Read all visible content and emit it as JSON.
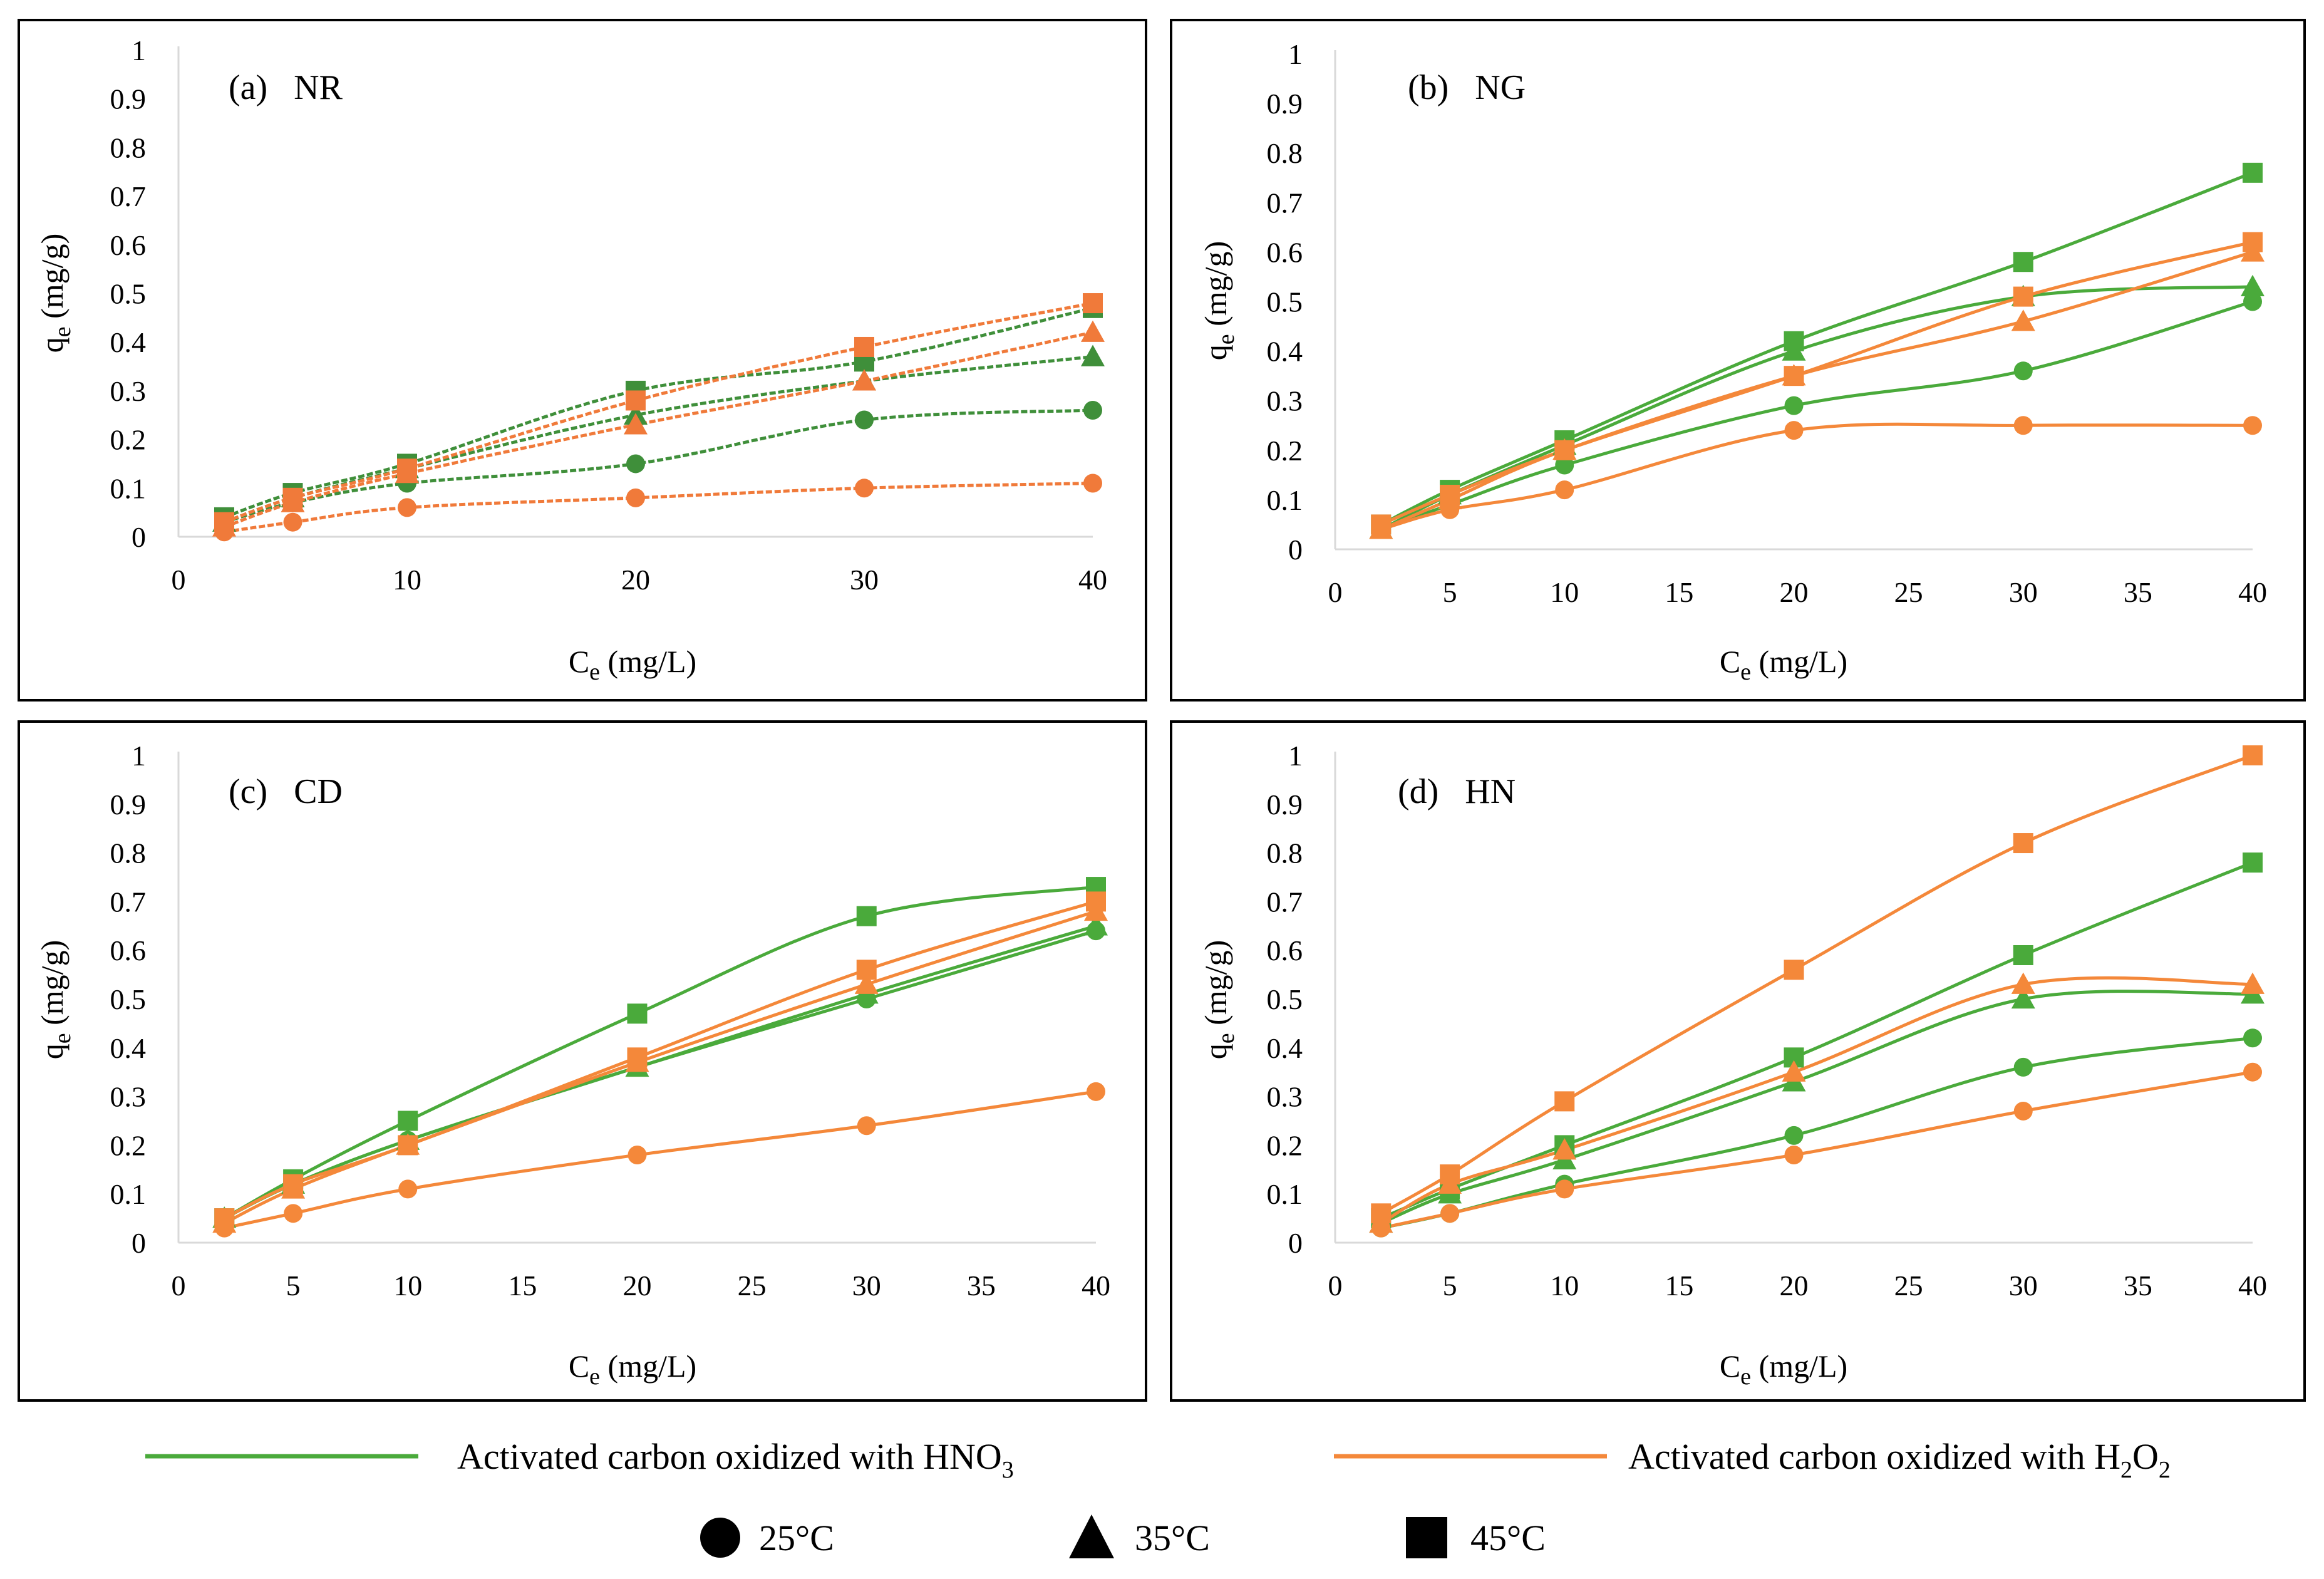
{
  "colors": {
    "hno3": "#4aaa3b",
    "h2o2": "#f4883a",
    "nr_hno3": "#3f8f3a",
    "nr_h2o2": "#f07a3a"
  },
  "legend": {
    "hno3_label_main": "Activated carbon oxidized with HNO",
    "hno3_label_sub": "3",
    "h2o2_label_main": "Activated carbon oxidized with H",
    "h2o2_label_sub1": "2",
    "h2o2_label_mid": "O",
    "h2o2_label_sub2": "2",
    "temps": [
      {
        "shape": "circle",
        "label": "25°C"
      },
      {
        "shape": "triangle",
        "label": "35°C"
      },
      {
        "shape": "square",
        "label": "45°C"
      }
    ]
  },
  "chart_data": [
    {
      "type": "line",
      "title": "(a)   NR",
      "xlabel": "C",
      "xlabel_sub": "e",
      "xlabel_unit": " (mg/L)",
      "ylabel": "q",
      "ylabel_sub": "e",
      "ylabel_unit": " (mg/g)",
      "xlim": [
        0,
        40
      ],
      "ylim": [
        0,
        1
      ],
      "xticks": [
        0,
        10,
        20,
        30,
        40
      ],
      "yticks": [
        0,
        0.1,
        0.2,
        0.3,
        0.4,
        0.5,
        0.6,
        0.7,
        0.8,
        0.9,
        1
      ],
      "x": [
        2,
        5,
        10,
        20,
        30,
        40
      ],
      "series": [
        {
          "name": "HNO3 25°C",
          "color_key": "nr_hno3",
          "marker": "circle",
          "values": [
            0.03,
            0.07,
            0.11,
            0.15,
            0.24,
            0.26
          ]
        },
        {
          "name": "HNO3 35°C",
          "color_key": "nr_hno3",
          "marker": "triangle",
          "values": [
            0.03,
            0.08,
            0.14,
            0.25,
            0.32,
            0.37
          ]
        },
        {
          "name": "HNO3 45°C",
          "color_key": "nr_hno3",
          "marker": "square",
          "values": [
            0.04,
            0.09,
            0.15,
            0.3,
            0.36,
            0.47
          ]
        },
        {
          "name": "H2O2 25°C",
          "color_key": "nr_h2o2",
          "marker": "circle",
          "values": [
            0.01,
            0.03,
            0.06,
            0.08,
            0.1,
            0.11
          ]
        },
        {
          "name": "H2O2 35°C",
          "color_key": "nr_h2o2",
          "marker": "triangle",
          "values": [
            0.02,
            0.07,
            0.13,
            0.23,
            0.32,
            0.42
          ]
        },
        {
          "name": "H2O2 45°C",
          "color_key": "nr_h2o2",
          "marker": "square",
          "values": [
            0.03,
            0.08,
            0.14,
            0.28,
            0.39,
            0.48
          ]
        }
      ]
    },
    {
      "type": "line",
      "title": "(b)   NG",
      "xlabel": "C",
      "xlabel_sub": "e",
      "xlabel_unit": " (mg/L)",
      "ylabel": "q",
      "ylabel_sub": "e",
      "ylabel_unit": " (mg/g)",
      "xlim": [
        0,
        40
      ],
      "ylim": [
        0,
        1
      ],
      "xticks": [
        0,
        5,
        10,
        15,
        20,
        25,
        30,
        35,
        40
      ],
      "yticks": [
        0,
        0.1,
        0.2,
        0.3,
        0.4,
        0.5,
        0.6,
        0.7,
        0.8,
        0.9,
        1
      ],
      "x": [
        2,
        5,
        10,
        20,
        30,
        40
      ],
      "series": [
        {
          "name": "HNO3 25°C",
          "color_key": "hno3",
          "marker": "circle",
          "values": [
            0.04,
            0.09,
            0.17,
            0.29,
            0.36,
            0.5
          ]
        },
        {
          "name": "HNO3 35°C",
          "color_key": "hno3",
          "marker": "triangle",
          "values": [
            0.04,
            0.11,
            0.21,
            0.4,
            0.51,
            0.53
          ]
        },
        {
          "name": "HNO3 45°C",
          "color_key": "hno3",
          "marker": "square",
          "values": [
            0.05,
            0.12,
            0.22,
            0.42,
            0.58,
            0.76
          ]
        },
        {
          "name": "H2O2 25°C",
          "color_key": "h2o2",
          "marker": "circle",
          "values": [
            0.04,
            0.08,
            0.12,
            0.24,
            0.25,
            0.25
          ]
        },
        {
          "name": "H2O2 35°C",
          "color_key": "h2o2",
          "marker": "triangle",
          "values": [
            0.04,
            0.1,
            0.2,
            0.35,
            0.46,
            0.6
          ]
        },
        {
          "name": "H2O2 45°C",
          "color_key": "h2o2",
          "marker": "square",
          "values": [
            0.05,
            0.11,
            0.2,
            0.35,
            0.51,
            0.62
          ]
        }
      ]
    },
    {
      "type": "line",
      "title": "(c)   CD",
      "xlabel": "C",
      "xlabel_sub": "e",
      "xlabel_unit": " (mg/L)",
      "ylabel": "q",
      "ylabel_sub": "e",
      "ylabel_unit": " (mg/g)",
      "xlim": [
        0,
        40
      ],
      "ylim": [
        0,
        1
      ],
      "xticks": [
        0,
        5,
        10,
        15,
        20,
        25,
        30,
        35,
        40
      ],
      "yticks": [
        0,
        0.1,
        0.2,
        0.3,
        0.4,
        0.5,
        0.6,
        0.7,
        0.8,
        0.9,
        1
      ],
      "x": [
        2,
        5,
        10,
        20,
        30,
        40
      ],
      "series": [
        {
          "name": "HNO3 25°C",
          "color_key": "hno3",
          "marker": "circle",
          "values": [
            0.05,
            0.12,
            0.21,
            0.36,
            0.5,
            0.64
          ]
        },
        {
          "name": "HNO3 35°C",
          "color_key": "hno3",
          "marker": "triangle",
          "values": [
            0.05,
            0.12,
            0.21,
            0.36,
            0.51,
            0.65
          ]
        },
        {
          "name": "HNO3 45°C",
          "color_key": "hno3",
          "marker": "square",
          "values": [
            0.05,
            0.13,
            0.25,
            0.47,
            0.67,
            0.73
          ]
        },
        {
          "name": "H2O2 25°C",
          "color_key": "h2o2",
          "marker": "circle",
          "values": [
            0.03,
            0.06,
            0.11,
            0.18,
            0.24,
            0.31
          ]
        },
        {
          "name": "H2O2 35°C",
          "color_key": "h2o2",
          "marker": "triangle",
          "values": [
            0.04,
            0.11,
            0.2,
            0.37,
            0.53,
            0.68
          ]
        },
        {
          "name": "H2O2 45°C",
          "color_key": "h2o2",
          "marker": "square",
          "values": [
            0.05,
            0.12,
            0.2,
            0.38,
            0.56,
            0.7
          ]
        }
      ]
    },
    {
      "type": "line",
      "title": "(d)   HN",
      "xlabel": "C",
      "xlabel_sub": "e",
      "xlabel_unit": " (mg/L)",
      "ylabel": "q",
      "ylabel_sub": "e",
      "ylabel_unit": " (mg/g)",
      "xlim": [
        0,
        40
      ],
      "ylim": [
        0,
        1
      ],
      "xticks": [
        0,
        5,
        10,
        15,
        20,
        25,
        30,
        35,
        40
      ],
      "yticks": [
        0,
        0.1,
        0.2,
        0.3,
        0.4,
        0.5,
        0.6,
        0.7,
        0.8,
        0.9,
        1
      ],
      "x": [
        2,
        5,
        10,
        20,
        30,
        40
      ],
      "series": [
        {
          "name": "HNO3 25°C",
          "color_key": "hno3",
          "marker": "circle",
          "values": [
            0.03,
            0.06,
            0.12,
            0.22,
            0.36,
            0.42
          ]
        },
        {
          "name": "HNO3 35°C",
          "color_key": "hno3",
          "marker": "triangle",
          "values": [
            0.04,
            0.1,
            0.17,
            0.33,
            0.5,
            0.51
          ]
        },
        {
          "name": "HNO3 45°C",
          "color_key": "hno3",
          "marker": "square",
          "values": [
            0.05,
            0.11,
            0.2,
            0.38,
            0.59,
            0.78
          ]
        },
        {
          "name": "H2O2 25°C",
          "color_key": "h2o2",
          "marker": "circle",
          "values": [
            0.03,
            0.06,
            0.11,
            0.18,
            0.27,
            0.35
          ]
        },
        {
          "name": "H2O2 35°C",
          "color_key": "h2o2",
          "marker": "triangle",
          "values": [
            0.04,
            0.12,
            0.19,
            0.35,
            0.53,
            0.53
          ]
        },
        {
          "name": "H2O2 45°C",
          "color_key": "h2o2",
          "marker": "square",
          "values": [
            0.06,
            0.14,
            0.29,
            0.56,
            0.82,
            1.0
          ]
        }
      ]
    }
  ]
}
